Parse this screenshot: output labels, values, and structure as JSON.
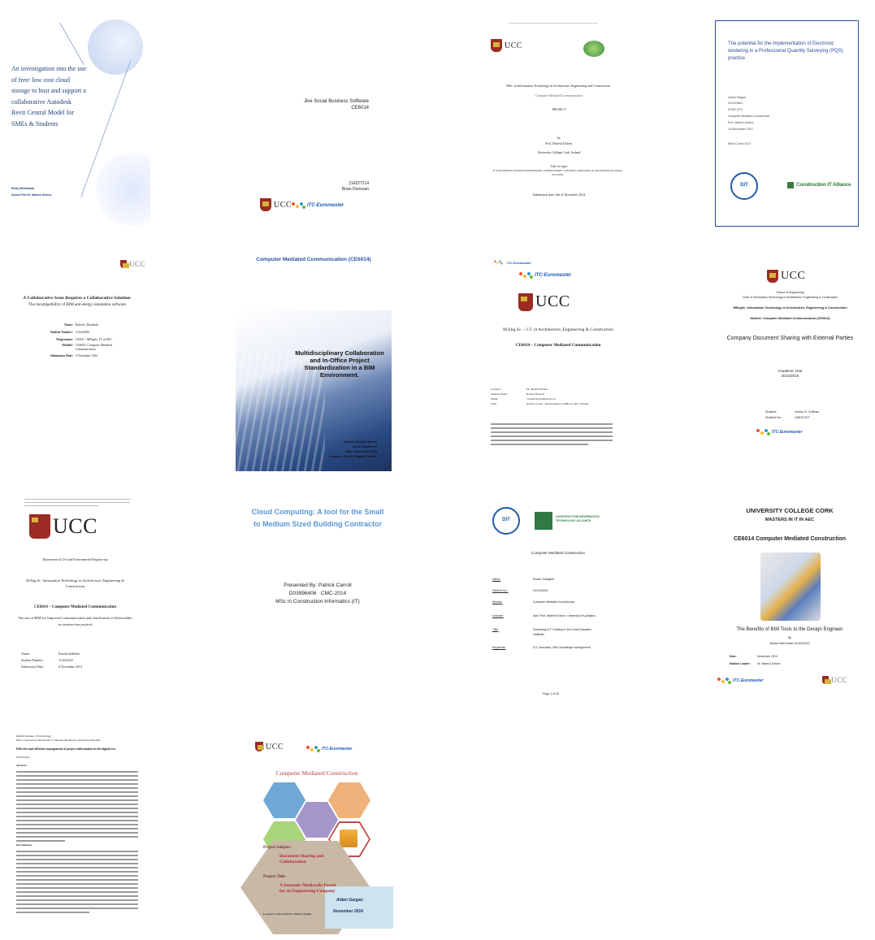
{
  "covers": {
    "c1": {
      "title": "An investigation into the use of free/ low cost cloud storage to host and support a collaborative Autodesk Revit Central Model for SMEs & Students",
      "author": "Emily McNamara",
      "supervisor": "Assist.Prof.Dr. Matevž Dolenc",
      "accent": "#1f3f7a"
    },
    "c2": {
      "title": "Jive Social Business Software",
      "code": "CE6014",
      "id": "114227214",
      "author": "Brian Donovan"
    },
    "c3": {
      "course": "MSc. in Information Technology in Architecture, Engineering and Construction",
      "module": "Computer Mediated Communication",
      "type": "PROJECT",
      "by": "by",
      "lecturer": "Prof. Matevž Dolenc",
      "university": "University College Cork, Ireland",
      "title_label": "Title of topic",
      "title": "IT in BUSINESS WATER ENGINEERING SUPERVISORY CONTROL AND DATA ACQUISITION (SCADA) SYSTEM",
      "date": "Submission date: 6th of November 2014"
    },
    "c4": {
      "title": "The potential for the implementation of Electronic tendering in a Professional Quantity Surveying (PQS) practice",
      "name": "Ciaran Magee",
      "id": "D13123661",
      "code": "DT540 (PT)",
      "module": "Computer Mediated Construction",
      "lecturer": "Prof. Matevž Dolenc",
      "date": "1st December 2014",
      "word_count": "Word Count: 4147",
      "alliance": "Construction IT Alliance"
    },
    "c5": {
      "title": "A Collaborative Issue Requires a Collaborative Solution:",
      "subtitle": "The incompatibility of BIM and energy simulation software",
      "labels": [
        "Name:",
        "Student Number:",
        "Programme:",
        "Module:",
        "Submission Date:"
      ],
      "values": [
        "Roberts, Elizabeth",
        "114224305",
        "CK811 - MEngSc. IT in AEC",
        "CE6014, Computer Mediated Communication",
        "6 November 2014"
      ]
    },
    "c6": {
      "header": "Computer Mediated Communication (CE6014)",
      "title": "Multidisciplinary Collaboration and In-Office Project Standardization in a BIM Environment.",
      "author": "Author: Eoghan Morris",
      "firm": "SCSC Engineers",
      "date": "Date: November 2014",
      "lecturer": "Lecturer: Prof.Dr. Matevž Dolenc"
    },
    "c7": {
      "course": "M.Eng.Sc. – I.T. in Architecture, Engineering & Construction",
      "module": "CE6014 – Computer Mediated Communication",
      "labels": [
        "Lecturer:",
        "Student Name:",
        "Email:",
        "Title:"
      ],
      "values": [
        "Dr. Matevž Dolenc",
        "Robert Howard",
        "114224101@umail.ucc.ie",
        "Private Cloud – Developing for SMEs in AEC domain"
      ]
    },
    "c8": {
      "school": "School of Engineering",
      "chair": "Chair of Information Technology in Architecture, Engineering & Construction",
      "course": "MEngSc. Information Technology in Architecture, Engineering & Construction",
      "module": "Module: Computer Mediated Communication (CE6014)",
      "title": "Company Document Sharing with External Parties",
      "year_label": "Academic Year",
      "year": "2014/2015",
      "student": "Jimmy O. Sullivan",
      "student_no": "108012377"
    },
    "c9": {
      "dept": "Department of Civil and Environmental Engineering",
      "course": "M.Eng.Sc. Information Technology in Architecture, Engineering & Construction",
      "module": "CE6014 – Computer Mediated Communication",
      "title": "The use of BIM for improved communication and clarification of deliverables in construction projects",
      "labels": [
        "Name:",
        "Student Number:",
        "Submission Date:"
      ],
      "values": [
        "Patrick Kelleher",
        "114224102",
        "6 November 2014"
      ]
    },
    "c10": {
      "title": "Cloud Computing: A tool for the Small to Medium Sized Building Contractor",
      "presented": "Presented By: Patrick Carroll",
      "ids": "D03996406   CMC-2014",
      "course": "MSc in Construction Informatics (IT)"
    },
    "c11": {
      "alliance": "CONSTRUCTION INFORMATION TECHNOLOGY ALLIANCE",
      "module_title": "Computer Mediated Construction",
      "labels": [
        "Name:",
        "Student No.:",
        "Module:",
        "Lecturer:",
        "Title:",
        "Keywords:"
      ],
      "values": [
        "Ronan Gallagher",
        "D14123425",
        "Computer Mediated Construction",
        "Asst. Prof. Matevž Dolenc, University of Ljubljana",
        "Sustaining ICT Training in 3rd Level Education Institutes",
        "ICT, education, BIM, knowledge management"
      ],
      "page": "Page 1 of 43"
    },
    "c12": {
      "university": "UNIVERSITY COLLEGE CORK",
      "course": "MASTERS IN IT IN AEC",
      "module": "CE6014 Computer Mediated Construction",
      "title": "The Benefits of BIM Tools to the Design Engineer",
      "by": "By",
      "author": "Sandra McDonnell (114224212)",
      "date_label": "Date:",
      "date": "November 2014",
      "leader_label": "Module Leader:",
      "leader": "Dr. Matevž Dolenc"
    },
    "c13": {
      "header1": "Dublin Institute of Technology",
      "header2": "MSc Construction Informatics: Computer Mediated Construction Module",
      "title": "Effective and efficient management of project information in the digital era",
      "author": "Niall Walsh",
      "abstract": "Abstract",
      "intro": "Introduction"
    },
    "c14": {
      "title": "Computer Mediated Construction",
      "subject_label": "Project Subject:",
      "subject": "Document Sharing and Collaboration",
      "ptitle_label": "Project Title:",
      "ptitle": "A Semantic Mediawiki Portal for an Engineering Company",
      "lecturer": "Lecturer: Assist.Prof.Dr. Matevž Dolenc",
      "author": "Aidan Gargan",
      "date": "November 2014"
    },
    "logos": {
      "ucc": "UCC",
      "itc": "ITC-Euromaster",
      "itc_sub": "European Master in Construction Information Technology",
      "dit": "DIT",
      "cita": "Construction IT Alliance"
    }
  }
}
